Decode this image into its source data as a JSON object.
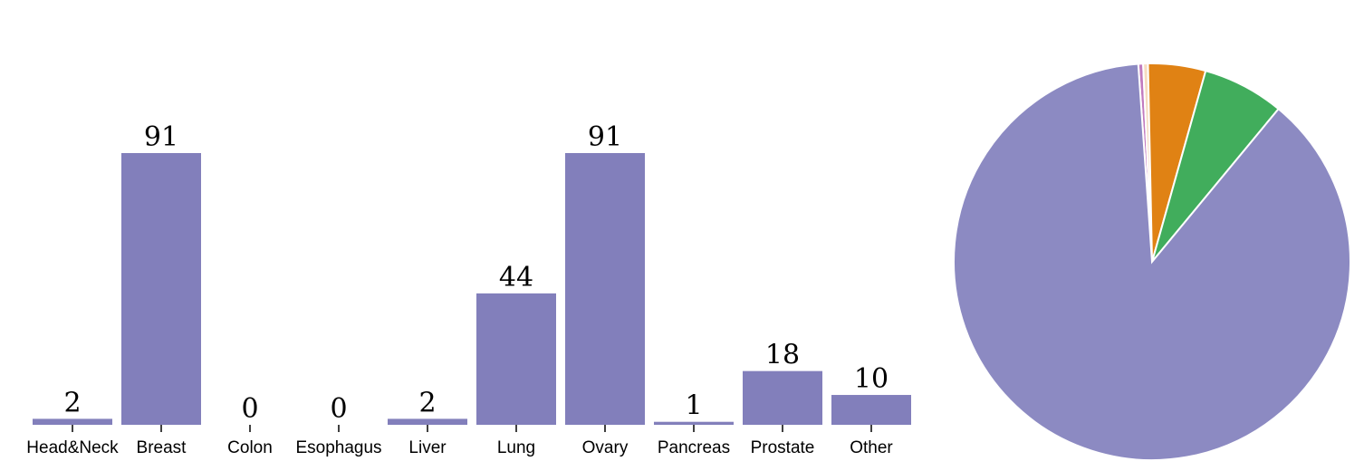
{
  "chart_data": [
    {
      "type": "bar",
      "categories": [
        "Head&Neck",
        "Breast",
        "Colon",
        "Esophagus",
        "Liver",
        "Lung",
        "Ovary",
        "Pancreas",
        "Prostate",
        "Other"
      ],
      "values": [
        2,
        91,
        0,
        0,
        2,
        44,
        91,
        1,
        18,
        10
      ],
      "ylim": [
        0,
        91
      ],
      "bar_color": "#827fbb",
      "data_labels": true,
      "grid": false
    },
    {
      "type": "pie",
      "slices": [
        {
          "value": 1,
          "color": "#c27bbf"
        },
        {
          "value": 1,
          "color": "#f6dcc0"
        },
        {
          "value": 12,
          "color": "#e08214"
        },
        {
          "value": 17,
          "color": "#41ad5c"
        },
        {
          "value": 225,
          "color": "#8c8ac2"
        }
      ],
      "start_angle_deg": -4,
      "direction": "clockwise"
    }
  ]
}
